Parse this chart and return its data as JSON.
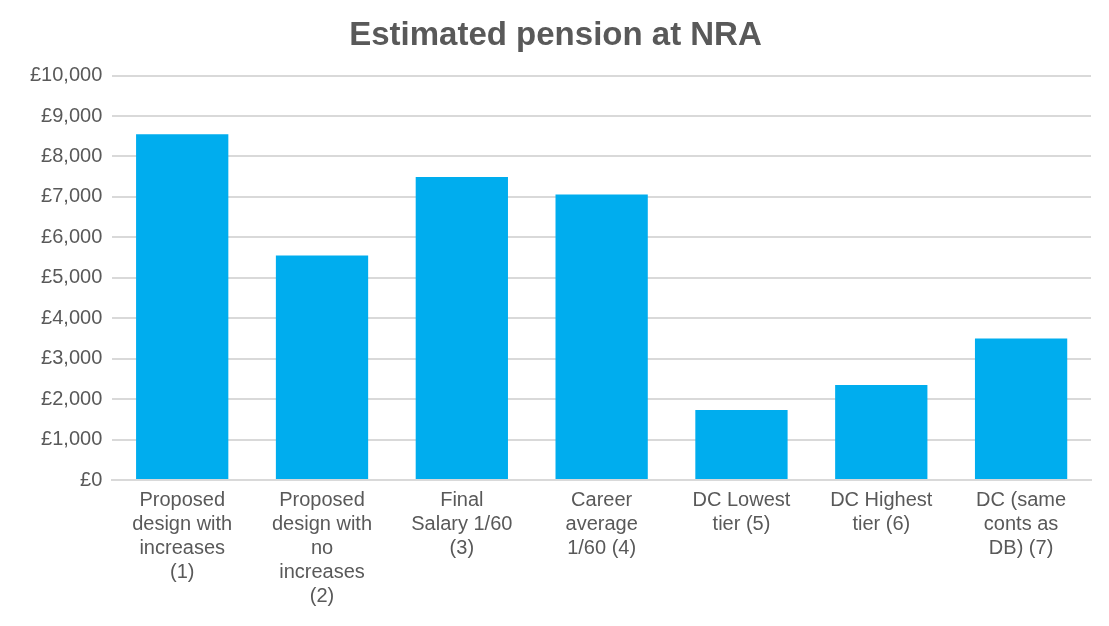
{
  "chart_data": {
    "type": "bar",
    "title": "Estimated pension at NRA",
    "categories": [
      "Proposed design with increases (1)",
      "Proposed design with no increases (2)",
      "Final Salary 1/60 (3)",
      "Career average 1/60 (4)",
      "DC Lowest tier (5)",
      "DC Highest tier (6)",
      "DC (same conts as DB) (7)"
    ],
    "values": [
      8550,
      5550,
      7490,
      7060,
      1730,
      2350,
      3500
    ],
    "color": "#00adee",
    "ylim": [
      0,
      10000
    ],
    "yticks": [
      {
        "value": 0,
        "label": "£0"
      },
      {
        "value": 1000,
        "label": "£1,000"
      },
      {
        "value": 2000,
        "label": "£2,000"
      },
      {
        "value": 3000,
        "label": "£3,000"
      },
      {
        "value": 4000,
        "label": "£4,000"
      },
      {
        "value": 5000,
        "label": "£5,000"
      },
      {
        "value": 6000,
        "label": "£6,000"
      },
      {
        "value": 7000,
        "label": "£7,000"
      },
      {
        "value": 8000,
        "label": "£8,000"
      },
      {
        "value": 9000,
        "label": "£9,000"
      },
      {
        "value": 10000,
        "label": "£10,000"
      }
    ],
    "grid": "y",
    "legend": false
  }
}
